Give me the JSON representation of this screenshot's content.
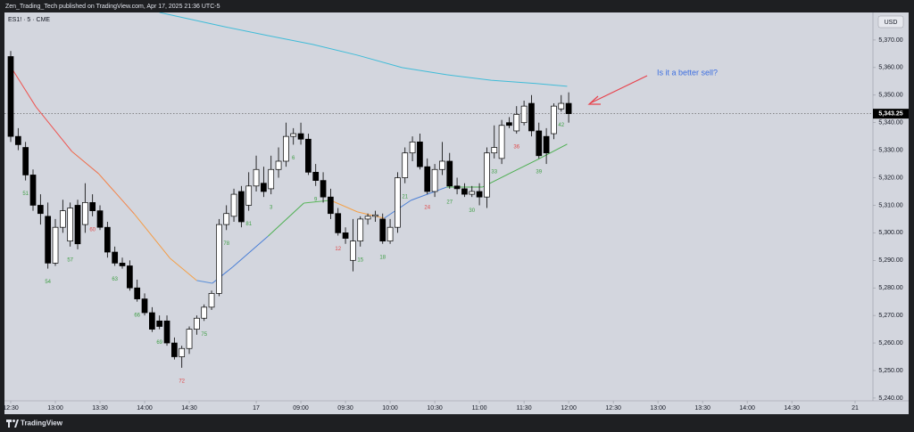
{
  "header": {
    "text": "Zen_Trading_Tech published on TradingView.com, Apr 17, 2025 21:36 UTC-5"
  },
  "footer": {
    "brand": "TradingView"
  },
  "chart_data": {
    "type": "candlestick",
    "symbol": "ES1! · 5 · CME",
    "currency": "USD",
    "annotation": "Is it a better sell?",
    "up_color": "#ffffff",
    "down_color": "#000000",
    "candles": {
      "open": [
        5364,
        5335,
        5331,
        5321,
        5310,
        5306,
        5289,
        5302,
        5297,
        5310,
        5303,
        5311,
        5308,
        5302,
        5293,
        5289,
        5288,
        5280,
        5276,
        5271,
        5268,
        5268,
        5260,
        5255,
        5258,
        5265,
        5269,
        5273,
        5278,
        5303,
        5306,
        5315,
        5310,
        5317,
        5318,
        5316,
        5323,
        5326,
        5335,
        5336,
        5334,
        5322,
        5319,
        5313,
        5307,
        5300,
        5290,
        5297,
        5305,
        5306,
        5305,
        5297,
        5302,
        5320,
        5329,
        5333,
        5324,
        5315,
        5323,
        5326,
        5317,
        5316,
        5314,
        5315,
        5313,
        5329,
        5327,
        5340,
        5337,
        5340,
        5347,
        5337,
        5335,
        5336,
        5345,
        5347
      ],
      "high": [
        5366,
        5338,
        5333,
        5323,
        5314,
        5311,
        5305,
        5312,
        5311,
        5312,
        5318,
        5314,
        5310,
        5304,
        5295,
        5291,
        5290,
        5283,
        5278,
        5273,
        5270,
        5270,
        5262,
        5259,
        5266,
        5270,
        5274,
        5279,
        5305,
        5310,
        5316,
        5317,
        5322,
        5328,
        5324,
        5328,
        5331,
        5340,
        5338,
        5340,
        5336,
        5325,
        5322,
        5316,
        5309,
        5302,
        5305,
        5306,
        5307,
        5308,
        5307,
        5305,
        5322,
        5331,
        5335,
        5336,
        5327,
        5325,
        5333,
        5329,
        5320,
        5318,
        5317,
        5318,
        5331,
        5339,
        5341,
        5342,
        5346,
        5348,
        5350,
        5340,
        5338,
        5347,
        5350,
        5351
      ],
      "low": [
        5333,
        5330,
        5319,
        5308,
        5303,
        5287,
        5288,
        5300,
        5295,
        5294,
        5300,
        5306,
        5301,
        5291,
        5288,
        5287,
        5279,
        5275,
        5270,
        5264,
        5265,
        5259,
        5254,
        5251,
        5256,
        5263,
        5268,
        5272,
        5277,
        5301,
        5304,
        5302,
        5308,
        5315,
        5313,
        5314,
        5320,
        5324,
        5332,
        5332,
        5321,
        5317,
        5311,
        5305,
        5299,
        5296,
        5286,
        5295,
        5303,
        5304,
        5296,
        5296,
        5300,
        5318,
        5326,
        5323,
        5314,
        5313,
        5321,
        5316,
        5314,
        5313,
        5313,
        5310,
        5309,
        5327,
        5325,
        5338,
        5336,
        5339,
        5335,
        5327,
        5325,
        5334,
        5344,
        5340
      ],
      "close": [
        5335,
        5332,
        5321,
        5310,
        5307,
        5289,
        5302,
        5308,
        5309,
        5296,
        5311,
        5308,
        5302,
        5293,
        5289,
        5288,
        5280,
        5276,
        5271,
        5265,
        5266,
        5260,
        5255,
        5258,
        5265,
        5269,
        5273,
        5278,
        5303,
        5307,
        5314,
        5304,
        5317,
        5323,
        5315,
        5323,
        5326,
        5335,
        5336,
        5334,
        5322,
        5319,
        5313,
        5307,
        5300,
        5298,
        5297,
        5305,
        5306,
        5306.5,
        5297,
        5302,
        5320,
        5329,
        5333,
        5324,
        5315,
        5323,
        5326,
        5317,
        5316,
        5314,
        5315,
        5313,
        5329,
        5331,
        5339,
        5339,
        5343,
        5346,
        5337,
        5328,
        5329,
        5346,
        5347,
        5343.25
      ]
    },
    "last_price": {
      "value": 5343.25,
      "label": "5,343.25"
    },
    "series": [
      {
        "x": [
          20,
          28.6,
          34.6,
          40.6,
          46.6,
          52.6,
          58.6,
          64.6,
          70.6,
          74.8
        ],
        "values": [
          5380,
          5374.9,
          5371.6,
          5368.4,
          5364.5,
          5360,
          5357.4,
          5355.4,
          5354.2,
          5353.2
        ],
        "color": "#40bcd8"
      },
      {
        "x": [
          0,
          3.4,
          8.2,
          11.8,
          16.6,
          21.4,
          25,
          27.1,
          29.8,
          34.6,
          39.4,
          43,
          46.6,
          50.2,
          53.8,
          58.6,
          63.4,
          67,
          70.6,
          74.8
        ],
        "values": [
          5360.3,
          5345.7,
          5329.6,
          5321.5,
          5306.9,
          5290.8,
          5282.7,
          5281.7,
          5287.5,
          5298.8,
          5310.8,
          5311.8,
          5307.6,
          5305.3,
          5311.8,
          5316.6,
          5316.6,
          5321.5,
          5326.3,
          5332.2
        ],
        "color": [
          "#ef5350",
          "#ef5350",
          "#f06a48",
          "#f3844a",
          "#f59c45",
          "#f5a045",
          "#5b8fd8",
          "#4a7fd6",
          "#4a7fd6",
          "#4caf50",
          "#5cb85c",
          "#f5a045",
          "#f5a045",
          "#4a7fd6",
          "#4a7fd6",
          "#4caf50",
          "#4caf50",
          "#4caf50",
          "#4caf50",
          "#4caf50"
        ]
      }
    ],
    "bar_labels": [
      {
        "bar": 2,
        "text": "51",
        "color": "#3f9e45"
      },
      {
        "bar": 5,
        "text": "54",
        "color": "#3f9e45"
      },
      {
        "bar": 8,
        "text": "57",
        "color": "#3f9e45"
      },
      {
        "bar": 11,
        "text": "60",
        "color": "#e04646"
      },
      {
        "bar": 14,
        "text": "63",
        "color": "#3f9e45"
      },
      {
        "bar": 17,
        "text": "66",
        "color": "#3f9e45"
      },
      {
        "bar": 20,
        "text": "69",
        "color": "#3f9e45"
      },
      {
        "bar": 23,
        "text": "72",
        "color": "#e04646"
      },
      {
        "bar": 26,
        "text": "75",
        "color": "#3f9e45"
      },
      {
        "bar": 29,
        "text": "78",
        "color": "#3f9e45"
      },
      {
        "bar": 32,
        "text": "81",
        "color": "#3f9e45"
      },
      {
        "bar": 35,
        "text": "3",
        "color": "#3f9e45"
      },
      {
        "bar": 38,
        "text": "6",
        "color": "#3f9e45"
      },
      {
        "bar": 41,
        "text": "9",
        "color": "#3f9e45"
      },
      {
        "bar": 44,
        "text": "12",
        "color": "#e04646"
      },
      {
        "bar": 47,
        "text": "15",
        "color": "#3f9e45"
      },
      {
        "bar": 50,
        "text": "18",
        "color": "#3f9e45"
      },
      {
        "bar": 53,
        "text": "21",
        "color": "#3f9e45"
      },
      {
        "bar": 56,
        "text": "24",
        "color": "#e04646"
      },
      {
        "bar": 59,
        "text": "27",
        "color": "#3f9e45"
      },
      {
        "bar": 62,
        "text": "30",
        "color": "#3f9e45"
      },
      {
        "bar": 65,
        "text": "33",
        "color": "#3f9e45"
      },
      {
        "bar": 68,
        "text": "36",
        "color": "#e04646"
      },
      {
        "bar": 71,
        "text": "39",
        "color": "#3f9e45"
      },
      {
        "bar": 74,
        "text": "42",
        "color": "#3f9e45"
      }
    ],
    "xlim": [
      -0.84,
      115.9
    ],
    "xticks": [
      {
        "value": 0,
        "label": "12:30"
      },
      {
        "value": 6,
        "label": "13:00"
      },
      {
        "value": 12,
        "label": "13:30"
      },
      {
        "value": 18,
        "label": "14:00"
      },
      {
        "value": 24,
        "label": "14:30"
      },
      {
        "value": 33,
        "label": "17"
      },
      {
        "value": 39,
        "label": "09:00"
      },
      {
        "value": 45,
        "label": "09:30"
      },
      {
        "value": 51,
        "label": "10:00"
      },
      {
        "value": 57,
        "label": "10:30"
      },
      {
        "value": 63,
        "label": "11:00"
      },
      {
        "value": 69,
        "label": "11:30"
      },
      {
        "value": 75,
        "label": "12:00"
      },
      {
        "value": 81,
        "label": "12:30"
      },
      {
        "value": 87,
        "label": "13:00"
      },
      {
        "value": 93,
        "label": "13:30"
      },
      {
        "value": 99,
        "label": "14:00"
      },
      {
        "value": 105,
        "label": "14:30"
      },
      {
        "value": 113.5,
        "label": "21"
      }
    ],
    "ylim": [
      5239,
      5380
    ],
    "yticks": [
      {
        "value": 5370,
        "label": "5,370.00"
      },
      {
        "value": 5360,
        "label": "5,360.00"
      },
      {
        "value": 5350,
        "label": "5,350.00"
      },
      {
        "value": 5340,
        "label": "5,340.00"
      },
      {
        "value": 5330,
        "label": "5,330.00"
      },
      {
        "value": 5320,
        "label": "5,320.00"
      },
      {
        "value": 5310,
        "label": "5,310.00"
      },
      {
        "value": 5300,
        "label": "5,300.00"
      },
      {
        "value": 5290,
        "label": "5,290.00"
      },
      {
        "value": 5280,
        "label": "5,280.00"
      },
      {
        "value": 5270,
        "label": "5,270.00"
      },
      {
        "value": 5260,
        "label": "5,260.00"
      },
      {
        "value": 5250,
        "label": "5,250.00"
      },
      {
        "value": 5240,
        "label": "5,240.00"
      }
    ],
    "grid": false
  }
}
